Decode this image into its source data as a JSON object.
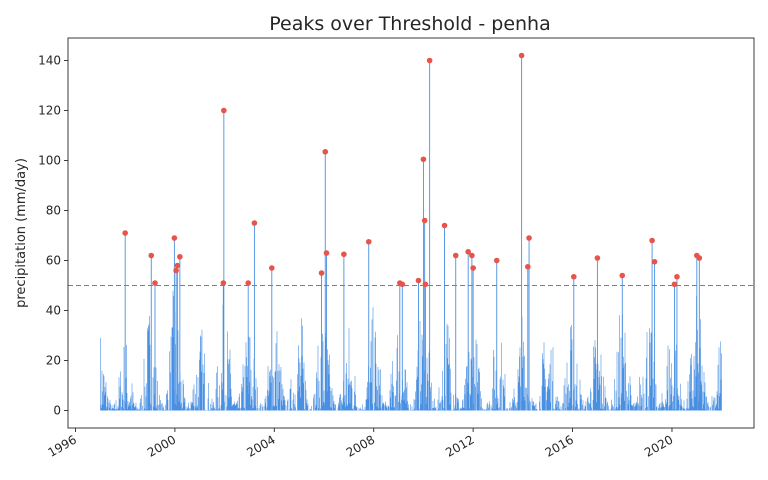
{
  "chart_data": {
    "type": "line",
    "title": "Peaks over Threshold - penha",
    "xlabel": "",
    "ylabel": "precipitation (mm/day)",
    "xlim": [
      1995.7,
      2023.3
    ],
    "ylim": [
      -7,
      149
    ],
    "x_ticks": [
      1996,
      2000,
      2004,
      2008,
      2012,
      2016,
      2020
    ],
    "x_tick_labels": [
      "1996",
      "2000",
      "2004",
      "2008",
      "2012",
      "2016",
      "2020"
    ],
    "y_ticks": [
      0,
      20,
      40,
      60,
      80,
      100,
      120,
      140
    ],
    "y_tick_labels": [
      "0",
      "20",
      "40",
      "60",
      "80",
      "100",
      "120",
      "140"
    ],
    "grid": false,
    "threshold": 50,
    "series": [
      {
        "kind": "daily-precipitation",
        "color": "#4a90e2",
        "x_start": 1997.0,
        "x_end": 2022.0,
        "envelope": [
          [
            1997.0,
            35
          ],
          [
            1997.5,
            22
          ],
          [
            1998.0,
            33
          ],
          [
            1998.5,
            24
          ],
          [
            1999.0,
            48
          ],
          [
            1999.5,
            30
          ],
          [
            2000.0,
            55
          ],
          [
            2000.5,
            28
          ],
          [
            2001.0,
            36
          ],
          [
            2001.5,
            48
          ],
          [
            2002.0,
            44
          ],
          [
            2002.5,
            38
          ],
          [
            2003.0,
            40
          ],
          [
            2003.5,
            28
          ],
          [
            2004.0,
            45
          ],
          [
            2004.5,
            40
          ],
          [
            2005.0,
            42
          ],
          [
            2005.5,
            48
          ],
          [
            2006.0,
            44
          ],
          [
            2006.5,
            30
          ],
          [
            2007.0,
            38
          ],
          [
            2007.5,
            28
          ],
          [
            2008.0,
            43
          ],
          [
            2008.5,
            34
          ],
          [
            2009.0,
            46
          ],
          [
            2009.5,
            34
          ],
          [
            2010.0,
            48
          ],
          [
            2010.5,
            38
          ],
          [
            2011.0,
            44
          ],
          [
            2011.5,
            36
          ],
          [
            2012.0,
            40
          ],
          [
            2012.5,
            30
          ],
          [
            2013.0,
            38
          ],
          [
            2013.5,
            35
          ],
          [
            2014.0,
            42
          ],
          [
            2014.5,
            33
          ],
          [
            2015.0,
            40
          ],
          [
            2015.5,
            41
          ],
          [
            2016.0,
            38
          ],
          [
            2016.5,
            35
          ],
          [
            2017.0,
            38
          ],
          [
            2017.5,
            30
          ],
          [
            2018.0,
            48
          ],
          [
            2018.5,
            34
          ],
          [
            2019.0,
            47
          ],
          [
            2019.5,
            38
          ],
          [
            2020.0,
            45
          ],
          [
            2020.5,
            43
          ],
          [
            2021.0,
            48
          ],
          [
            2021.5,
            40
          ],
          [
            2022.0,
            33
          ]
        ]
      },
      {
        "kind": "peaks",
        "color": "#e8534a",
        "points": [
          [
            1998.0,
            71
          ],
          [
            1999.05,
            62
          ],
          [
            1999.2,
            51
          ],
          [
            1999.98,
            69
          ],
          [
            2000.05,
            56
          ],
          [
            2000.1,
            58
          ],
          [
            2000.2,
            61.5
          ],
          [
            2001.95,
            51
          ],
          [
            2001.97,
            120
          ],
          [
            2002.95,
            51
          ],
          [
            2003.2,
            75
          ],
          [
            2003.9,
            57
          ],
          [
            2005.9,
            55
          ],
          [
            2006.05,
            103.5
          ],
          [
            2006.1,
            63
          ],
          [
            2006.8,
            62.5
          ],
          [
            2007.8,
            67.5
          ],
          [
            2009.05,
            51
          ],
          [
            2009.15,
            50.5
          ],
          [
            2009.8,
            52
          ],
          [
            2010.0,
            100.5
          ],
          [
            2010.05,
            76
          ],
          [
            2010.08,
            50.5
          ],
          [
            2010.25,
            140
          ],
          [
            2010.85,
            74
          ],
          [
            2011.3,
            62
          ],
          [
            2011.8,
            63.5
          ],
          [
            2011.95,
            62
          ],
          [
            2012.0,
            57
          ],
          [
            2012.95,
            60
          ],
          [
            2013.95,
            142
          ],
          [
            2014.2,
            57.5
          ],
          [
            2014.25,
            69
          ],
          [
            2016.05,
            53.5
          ],
          [
            2017.0,
            61
          ],
          [
            2018.0,
            54
          ],
          [
            2019.2,
            68
          ],
          [
            2019.3,
            59.5
          ],
          [
            2020.1,
            50.5
          ],
          [
            2020.2,
            53.5
          ],
          [
            2021.0,
            62
          ],
          [
            2021.1,
            61
          ]
        ]
      }
    ]
  }
}
